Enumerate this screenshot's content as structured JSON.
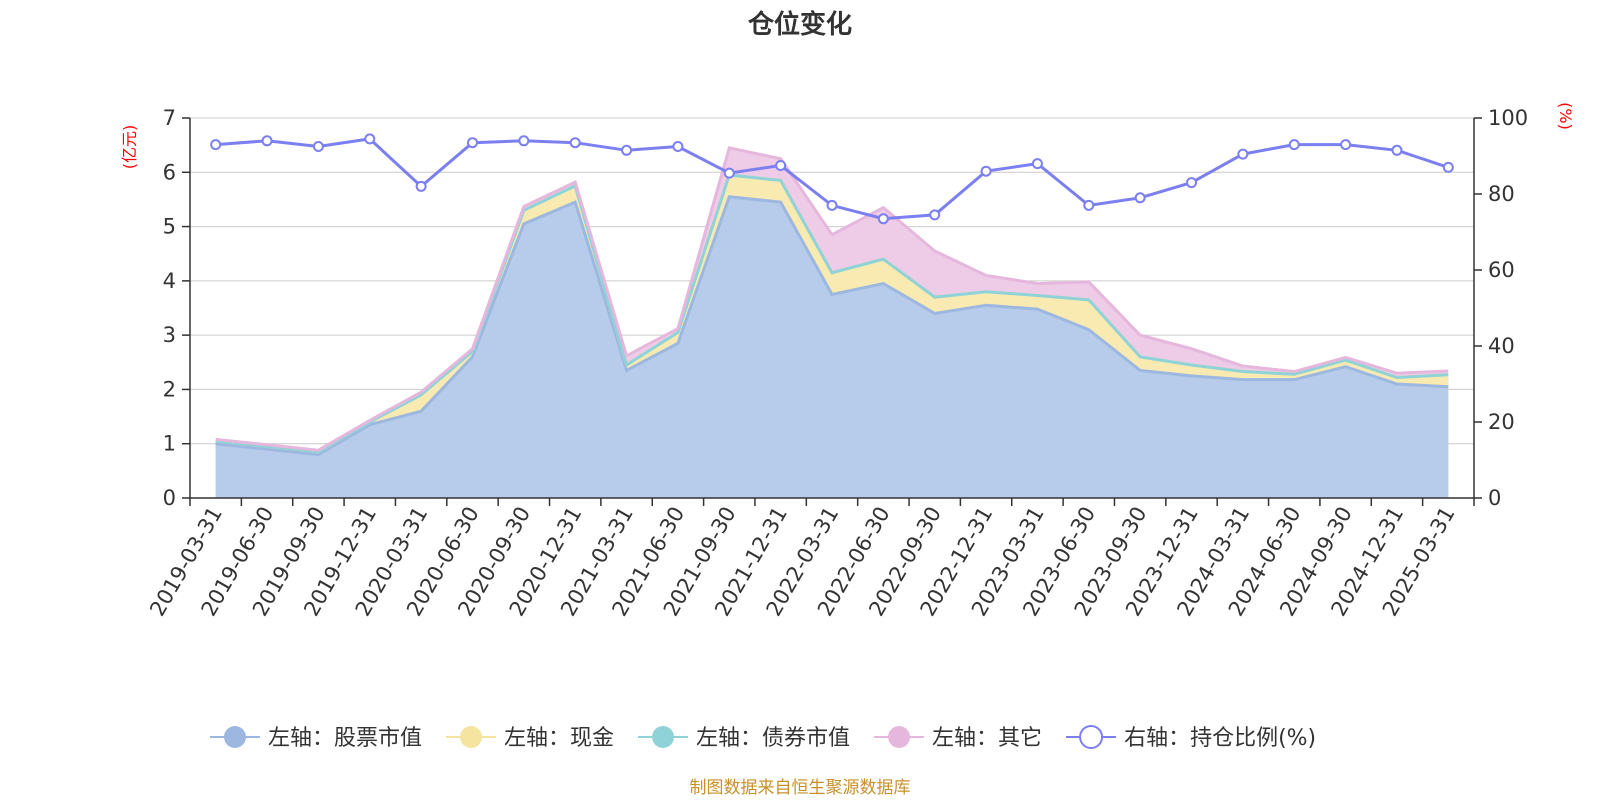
{
  "chart_data": {
    "type": "area",
    "title": "仓位变化",
    "source_note": "制图数据来自恒生聚源数据库",
    "left_axis": {
      "unit": "(亿元)",
      "min": 0,
      "max": 7,
      "ticks": [
        "0",
        "1",
        "2",
        "3",
        "4",
        "5",
        "6",
        "7"
      ]
    },
    "right_axis": {
      "unit": "(%)",
      "min": 0,
      "max": 100,
      "ticks": [
        "0",
        "20",
        "40",
        "60",
        "80",
        "100"
      ]
    },
    "categories": [
      "2019-03-31",
      "2019-06-30",
      "2019-09-30",
      "2019-12-31",
      "2020-03-31",
      "2020-06-30",
      "2020-09-30",
      "2020-12-31",
      "2021-03-31",
      "2021-06-30",
      "2021-09-30",
      "2021-12-31",
      "2022-03-31",
      "2022-06-30",
      "2022-09-30",
      "2022-12-31",
      "2023-03-31",
      "2023-06-30",
      "2023-09-30",
      "2023-12-31",
      "2024-03-31",
      "2024-06-30",
      "2024-09-30",
      "2024-12-31",
      "2025-03-31"
    ],
    "stack_series": [
      {
        "name": "左轴：股票市值",
        "color": "#9db8e0",
        "fill": "#b7cbea",
        "values": [
          1.0,
          0.9,
          0.8,
          1.35,
          1.6,
          2.6,
          5.05,
          5.45,
          2.35,
          2.85,
          5.55,
          5.45,
          3.75,
          3.95,
          3.4,
          3.55,
          3.48,
          3.1,
          2.35,
          2.25,
          2.18,
          2.18,
          2.42,
          2.1,
          2.05
        ]
      },
      {
        "name": "左轴：现金",
        "color": "#f5e4a0",
        "fill": "#f8eab0",
        "values": [
          0.05,
          0.05,
          0.05,
          0.05,
          0.3,
          0.1,
          0.25,
          0.3,
          0.1,
          0.2,
          0.4,
          0.4,
          0.4,
          0.45,
          0.3,
          0.25,
          0.25,
          0.55,
          0.25,
          0.2,
          0.15,
          0.1,
          0.12,
          0.12,
          0.22
        ]
      },
      {
        "name": "左轴：债券市值",
        "color": "#8fd3d8",
        "fill": "#a8dde0",
        "values": [
          0,
          0,
          0,
          0,
          0,
          0,
          0,
          0,
          0,
          0,
          0,
          0,
          0,
          0,
          0,
          0,
          0,
          0,
          0,
          0,
          0,
          0,
          0,
          0,
          0
        ]
      },
      {
        "name": "左轴：其它",
        "color": "#e6b7dd",
        "fill": "#eecbe6",
        "values": [
          0.03,
          0.03,
          0.03,
          0.03,
          0.05,
          0.05,
          0.07,
          0.07,
          0.17,
          0.07,
          0.5,
          0.4,
          0.7,
          0.95,
          0.85,
          0.3,
          0.22,
          0.33,
          0.4,
          0.3,
          0.1,
          0.05,
          0.05,
          0.08,
          0.07
        ]
      }
    ],
    "line_series": {
      "name": "右轴：持仓比例(%)",
      "color": "#7b7ff0",
      "values": [
        93,
        94,
        92.5,
        94.5,
        82,
        93.5,
        94,
        93.5,
        91.5,
        92.5,
        85.5,
        87.5,
        77,
        73.5,
        74.5,
        86,
        88,
        77,
        79,
        83,
        90.5,
        93,
        93,
        91.5,
        87
      ]
    },
    "grid": true,
    "legend_position": "bottom"
  }
}
